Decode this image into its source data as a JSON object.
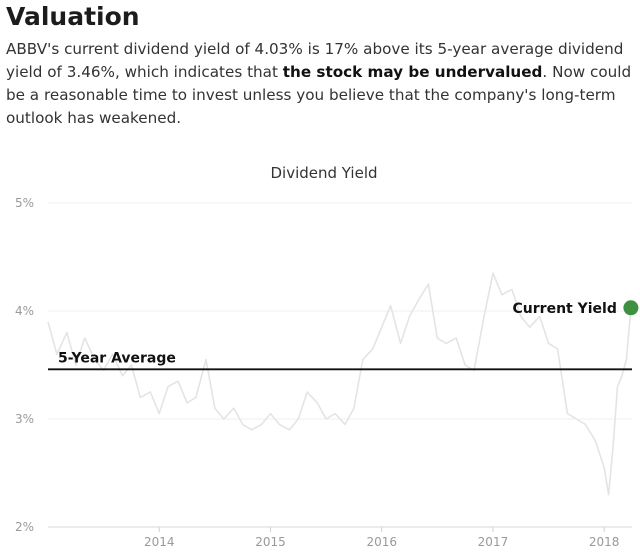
{
  "section": {
    "heading": "Valuation",
    "desc_part1": "ABBV's current dividend yield of 4.03% is 17% above its 5-year average dividend yield of 3.46%, which indicates that ",
    "desc_bold": "the stock may be undervalued",
    "desc_part2": ". Now could be a reasonable time to invest unless you believe that the company's long-term outlook has weakened."
  },
  "chart_data": {
    "type": "line",
    "title": "Dividend Yield",
    "xlabel": "",
    "ylabel": "",
    "ylim": [
      2,
      5
    ],
    "xlim": [
      2013.0,
      2018.25
    ],
    "y_ticks": [
      "5%",
      "4%",
      "3%",
      "2%"
    ],
    "y_tick_values": [
      5,
      4,
      3,
      2
    ],
    "x_ticks": [
      "2014",
      "2015",
      "2016",
      "2017",
      "2018"
    ],
    "x_tick_values": [
      2014,
      2015,
      2016,
      2017,
      2018
    ],
    "grid": true,
    "series": [
      {
        "color": "#e4e4e4",
        "x": [
          2013.0,
          2013.08,
          2013.17,
          2013.25,
          2013.33,
          2013.42,
          2013.5,
          2013.58,
          2013.67,
          2013.75,
          2013.83,
          2013.92,
          2014.0,
          2014.08,
          2014.17,
          2014.25,
          2014.33,
          2014.42,
          2014.5,
          2014.58,
          2014.67,
          2014.75,
          2014.83,
          2014.92,
          2015.0,
          2015.08,
          2015.17,
          2015.25,
          2015.33,
          2015.42,
          2015.5,
          2015.58,
          2015.67,
          2015.75,
          2015.83,
          2015.92,
          2016.0,
          2016.08,
          2016.17,
          2016.25,
          2016.33,
          2016.42,
          2016.5,
          2016.58,
          2016.67,
          2016.75,
          2016.83,
          2016.92,
          2017.0,
          2017.08,
          2017.17,
          2017.25,
          2017.33,
          2017.42,
          2017.5,
          2017.58,
          2017.67,
          2017.75,
          2017.83,
          2017.92,
          2018.0,
          2018.04,
          2018.08,
          2018.12,
          2018.16,
          2018.2,
          2018.24
        ],
        "values": [
          3.9,
          3.6,
          3.8,
          3.5,
          3.75,
          3.55,
          3.45,
          3.6,
          3.4,
          3.5,
          3.2,
          3.25,
          3.05,
          3.3,
          3.35,
          3.15,
          3.2,
          3.55,
          3.1,
          3.0,
          3.1,
          2.95,
          2.9,
          2.95,
          3.05,
          2.95,
          2.9,
          3.0,
          3.25,
          3.15,
          3.0,
          3.05,
          2.95,
          3.1,
          3.55,
          3.65,
          3.85,
          4.05,
          3.7,
          3.95,
          4.1,
          4.25,
          3.75,
          3.7,
          3.75,
          3.5,
          3.45,
          3.95,
          4.35,
          4.15,
          4.2,
          3.95,
          3.85,
          3.95,
          3.7,
          3.65,
          3.05,
          3.0,
          2.95,
          2.8,
          2.55,
          2.3,
          2.75,
          3.3,
          3.4,
          3.55,
          4.03
        ]
      },
      {
        "name": "5-Year Average",
        "value": 3.46
      }
    ],
    "annotations": {
      "average_label": "5-Year Average",
      "current_label": "Current Yield",
      "current_value": 4.03,
      "current_marker_color": "#3f9142"
    },
    "line_color": "#e4e4e4",
    "average_color": "#111111"
  }
}
